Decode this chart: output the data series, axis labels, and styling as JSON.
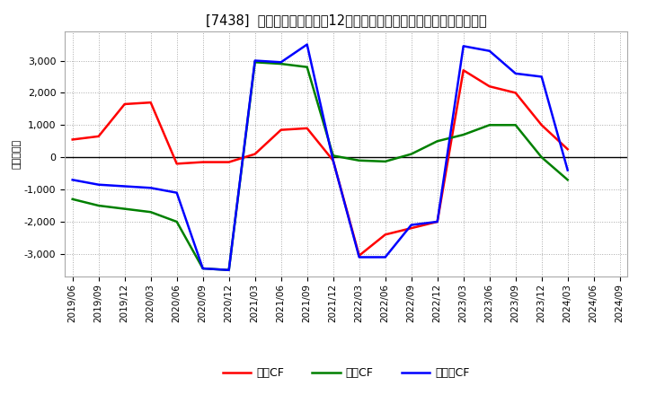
{
  "title": "[7438]  キャッシュフローの12か月移動合計の対前年同期増減額の推移",
  "ylabel": "（百万円）",
  "background_color": "#ffffff",
  "plot_bg_color": "#ffffff",
  "grid_color": "#aaaaaa",
  "ylim": [
    -3700,
    3900
  ],
  "yticks": [
    -3000,
    -2000,
    -1000,
    0,
    1000,
    2000,
    3000
  ],
  "x_labels": [
    "2019/06",
    "2019/09",
    "2019/12",
    "2020/03",
    "2020/06",
    "2020/09",
    "2020/12",
    "2021/03",
    "2021/06",
    "2021/09",
    "2021/12",
    "2022/03",
    "2022/06",
    "2022/09",
    "2022/12",
    "2023/03",
    "2023/06",
    "2023/09",
    "2023/12",
    "2024/03",
    "2024/06",
    "2024/09"
  ],
  "operating_cf": [
    550,
    650,
    1650,
    1700,
    -200,
    -150,
    -150,
    100,
    850,
    900,
    -100,
    -3050,
    -2400,
    -2200,
    -2000,
    2700,
    2200,
    2000,
    1000,
    250,
    null,
    null
  ],
  "investing_cf": [
    -1300,
    -1500,
    -1600,
    -1700,
    -2000,
    -3450,
    -3500,
    2950,
    2900,
    2800,
    50,
    -100,
    -130,
    100,
    500,
    700,
    1000,
    1000,
    0,
    -700,
    null,
    null
  ],
  "free_cf": [
    -700,
    -850,
    -900,
    -950,
    -1100,
    -3450,
    -3500,
    3000,
    2950,
    3500,
    -100,
    -3100,
    -3100,
    -2100,
    -2000,
    3450,
    3300,
    2600,
    2500,
    -400,
    null,
    null
  ],
  "operating_color": "#ff0000",
  "investing_color": "#008000",
  "free_color": "#0000ff",
  "legend_labels": [
    "営業CF",
    "投資CF",
    "フリーCF"
  ]
}
